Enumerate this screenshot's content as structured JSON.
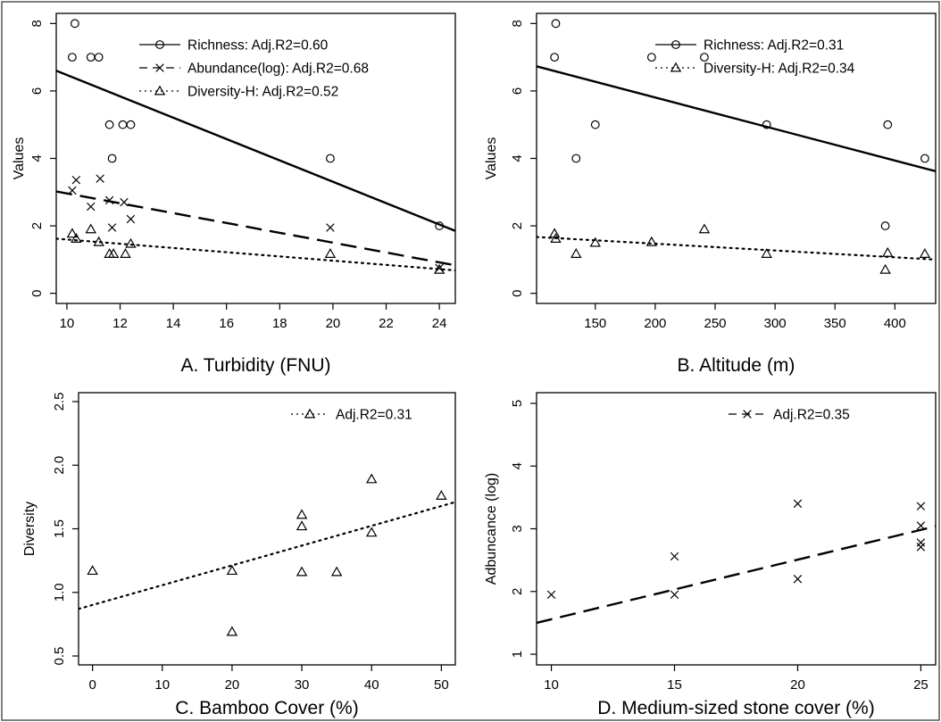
{
  "charts": [
    {
      "id": "A",
      "chart_data": {
        "type": "scatter",
        "xlabel": "A. Turbidity (FNU)",
        "ylabel": "Values",
        "xlim": [
          9.6,
          24.6
        ],
        "ylim": [
          -0.3,
          8.3
        ],
        "xticks": [
          10,
          12,
          14,
          16,
          18,
          20,
          22,
          24
        ],
        "yticks": [
          0,
          2,
          4,
          6,
          8
        ],
        "grid": false,
        "legend_position": "top-right",
        "series": [
          {
            "name": "Richness: Adj.R2=0.60",
            "marker": "circle",
            "line": "solid",
            "points": [
              [
                10.2,
                7
              ],
              [
                10.3,
                8
              ],
              [
                10.9,
                7
              ],
              [
                11.2,
                7
              ],
              [
                11.6,
                5
              ],
              [
                11.7,
                4
              ],
              [
                12.1,
                5
              ],
              [
                12.4,
                5
              ],
              [
                19.9,
                4
              ],
              [
                24,
                2
              ]
            ],
            "fit": [
              [
                9.6,
                6.6
              ],
              [
                24.6,
                1.85
              ]
            ]
          },
          {
            "name": "Abundance(log): Adj.R2=0.68",
            "marker": "cross",
            "line": "dashed",
            "points": [
              [
                10.2,
                3.05
              ],
              [
                10.35,
                3.36
              ],
              [
                10.9,
                2.57
              ],
              [
                11.25,
                3.4
              ],
              [
                11.6,
                2.76
              ],
              [
                11.7,
                1.95
              ],
              [
                12.15,
                2.7
              ],
              [
                12.4,
                2.2
              ],
              [
                19.9,
                1.95
              ],
              [
                24,
                0.75
              ]
            ],
            "fit": [
              [
                9.6,
                3.02
              ],
              [
                24.6,
                0.83
              ]
            ]
          },
          {
            "name": "Diversity-H: Adj.R2=0.52",
            "marker": "triangle",
            "line": "dotted",
            "points": [
              [
                10.2,
                1.77
              ],
              [
                10.35,
                1.62
              ],
              [
                10.9,
                1.9
              ],
              [
                11.2,
                1.52
              ],
              [
                11.6,
                1.17
              ],
              [
                11.75,
                1.17
              ],
              [
                12.2,
                1.17
              ],
              [
                12.4,
                1.47
              ],
              [
                19.9,
                1.17
              ],
              [
                24,
                0.7
              ]
            ],
            "fit": [
              [
                9.6,
                1.62
              ],
              [
                24.6,
                0.68
              ]
            ]
          }
        ]
      }
    },
    {
      "id": "B",
      "chart_data": {
        "type": "scatter",
        "xlabel": "B. Altitude (m)",
        "ylabel": "Values",
        "xlim": [
          101,
          434
        ],
        "ylim": [
          -0.3,
          8.3
        ],
        "xticks": [
          150,
          200,
          250,
          300,
          350,
          400
        ],
        "yticks": [
          0,
          2,
          4,
          6,
          8
        ],
        "grid": false,
        "legend_position": "top-right",
        "series": [
          {
            "name": "Richness: Adj.R2=0.31",
            "marker": "circle",
            "line": "solid",
            "points": [
              [
                116,
                7
              ],
              [
                117,
                8
              ],
              [
                134,
                4
              ],
              [
                150,
                5
              ],
              [
                197,
                7
              ],
              [
                241,
                7
              ],
              [
                293,
                5
              ],
              [
                392,
                2
              ],
              [
                394,
                5
              ],
              [
                425,
                4
              ]
            ],
            "fit": [
              [
                101,
                6.73
              ],
              [
                434,
                3.62
              ]
            ]
          },
          {
            "name": "Diversity-H: Adj.R2=0.34",
            "marker": "triangle",
            "line": "dotted",
            "points": [
              [
                116,
                1.77
              ],
              [
                117,
                1.62
              ],
              [
                134,
                1.17
              ],
              [
                150,
                1.5
              ],
              [
                197,
                1.52
              ],
              [
                241,
                1.9
              ],
              [
                293,
                1.17
              ],
              [
                392,
                0.7
              ],
              [
                394,
                1.2
              ],
              [
                425,
                1.17
              ]
            ],
            "fit": [
              [
                101,
                1.67
              ],
              [
                434,
                1.0
              ]
            ]
          }
        ]
      }
    },
    {
      "id": "C",
      "chart_data": {
        "type": "scatter",
        "xlabel": "C. Bamboo Cover (%)",
        "ylabel": "Diversity",
        "xlim": [
          -2,
          52
        ],
        "ylim": [
          0.43,
          2.57
        ],
        "xticks": [
          0,
          10,
          20,
          30,
          40,
          50
        ],
        "yticks": [
          0.5,
          1.0,
          1.5,
          2.0,
          2.5
        ],
        "grid": false,
        "legend_position": "top-right",
        "series": [
          {
            "name": "Adj.R2=0.31",
            "marker": "triangle",
            "line": "dotted",
            "points": [
              [
                0,
                1.17
              ],
              [
                20,
                1.17
              ],
              [
                20,
                0.69
              ],
              [
                30,
                1.61
              ],
              [
                30,
                1.52
              ],
              [
                30,
                1.16
              ],
              [
                35,
                1.16
              ],
              [
                40,
                1.89
              ],
              [
                40,
                1.47
              ],
              [
                50,
                1.76
              ]
            ],
            "fit": [
              [
                -2,
                0.87
              ],
              [
                52,
                1.71
              ]
            ]
          }
        ]
      }
    },
    {
      "id": "D",
      "chart_data": {
        "type": "scatter",
        "xlabel": "D. Medium-sized stone cover (%)",
        "ylabel": "Adbuncance (log)",
        "xlim": [
          9.4,
          25.6
        ],
        "ylim": [
          0.83,
          5.17
        ],
        "xticks": [
          10,
          15,
          20,
          25
        ],
        "yticks": [
          1,
          2,
          3,
          4,
          5
        ],
        "grid": false,
        "legend_position": "top-right",
        "series": [
          {
            "name": "Adj.R2=0.35",
            "marker": "cross",
            "line": "dashed",
            "points": [
              [
                10,
                1.95
              ],
              [
                15,
                2.56
              ],
              [
                15,
                1.95
              ],
              [
                20,
                3.4
              ],
              [
                20,
                2.2
              ],
              [
                25,
                3.36
              ],
              [
                25,
                3.05
              ],
              [
                25,
                2.78
              ],
              [
                25,
                2.71
              ]
            ],
            "fit": [
              [
                9.4,
                1.5
              ],
              [
                25.6,
                3.04
              ]
            ]
          }
        ]
      }
    }
  ]
}
